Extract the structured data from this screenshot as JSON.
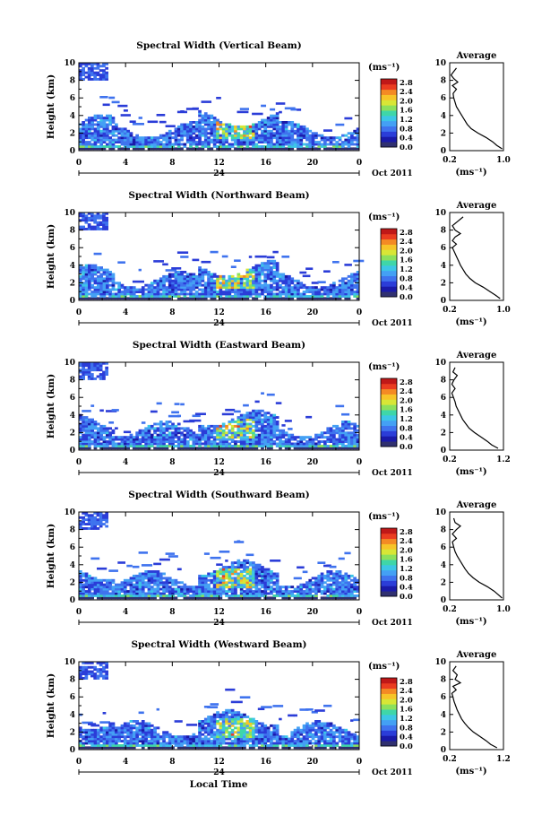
{
  "figure": {
    "xlabel": "Local Time",
    "date_label": "Oct 2011",
    "day_label": "24",
    "colorbar_unit": "(ms⁻¹)",
    "average_unit": "(ms⁻¹)",
    "average_title": "Average",
    "colors": [
      "#303070",
      "#1a1aa8",
      "#2b3dd8",
      "#3f73ee",
      "#44a0f4",
      "#3cc6e6",
      "#3fd6a8",
      "#8ce05c",
      "#d8e636",
      "#f7c428",
      "#f48a24",
      "#ea3c20",
      "#c01818"
    ]
  },
  "chart_data": [
    {
      "type": "heatmap",
      "title": "Spectral Width (Vertical Beam)",
      "ylabel": "Height (km)",
      "x_range": [
        0,
        24
      ],
      "y_range": [
        0,
        10
      ],
      "x_ticks": [
        "0",
        "4",
        "8",
        "12",
        "16",
        "20",
        "0"
      ],
      "y_ticks": [
        "0",
        "2",
        "4",
        "6",
        "8",
        "10"
      ],
      "colorbar_ticks": [
        "0.0",
        "0.4",
        "0.8",
        "1.2",
        "1.6",
        "2.0",
        "2.4",
        "2.8"
      ],
      "colorbar_range": [
        0,
        2.8
      ],
      "average": {
        "xlim": [
          0.2,
          1.0
        ],
        "x_ticks": [
          "0.2",
          "1.0"
        ],
        "y_ticks": [
          "0",
          "2",
          "4",
          "6",
          "8",
          "10"
        ],
        "profile": [
          [
            0.98,
            0.2
          ],
          [
            0.9,
            0.6
          ],
          [
            0.84,
            1.0
          ],
          [
            0.74,
            1.5
          ],
          [
            0.62,
            2.0
          ],
          [
            0.52,
            2.5
          ],
          [
            0.46,
            3.0
          ],
          [
            0.42,
            3.5
          ],
          [
            0.38,
            4.0
          ],
          [
            0.34,
            4.5
          ],
          [
            0.3,
            5.0
          ],
          [
            0.28,
            5.5
          ],
          [
            0.26,
            6.0
          ],
          [
            0.25,
            6.5
          ],
          [
            0.3,
            7.0
          ],
          [
            0.24,
            7.4
          ],
          [
            0.32,
            7.8
          ],
          [
            0.26,
            8.2
          ],
          [
            0.22,
            8.6
          ],
          [
            0.26,
            9.0
          ],
          [
            0.3,
            9.4
          ]
        ]
      }
    },
    {
      "type": "heatmap",
      "title": "Spectral Width (Northward Beam)",
      "ylabel": "Height (km)",
      "x_range": [
        0,
        24
      ],
      "y_range": [
        0,
        10
      ],
      "x_ticks": [
        "0",
        "4",
        "8",
        "12",
        "16",
        "20",
        "0"
      ],
      "y_ticks": [
        "0",
        "2",
        "4",
        "6",
        "8",
        "10"
      ],
      "colorbar_ticks": [
        "0.0",
        "0.4",
        "0.8",
        "1.2",
        "1.6",
        "2.0",
        "2.4",
        "2.8"
      ],
      "colorbar_range": [
        0,
        2.8
      ],
      "average": {
        "xlim": [
          0.2,
          1.0
        ],
        "x_ticks": [
          "0.2",
          "1.0"
        ],
        "y_ticks": [
          "0",
          "2",
          "4",
          "6",
          "8",
          "10"
        ],
        "profile": [
          [
            0.95,
            0.2
          ],
          [
            0.88,
            0.6
          ],
          [
            0.8,
            1.0
          ],
          [
            0.7,
            1.5
          ],
          [
            0.58,
            2.0
          ],
          [
            0.5,
            2.5
          ],
          [
            0.44,
            3.0
          ],
          [
            0.4,
            3.5
          ],
          [
            0.36,
            4.0
          ],
          [
            0.33,
            4.5
          ],
          [
            0.3,
            5.0
          ],
          [
            0.27,
            5.5
          ],
          [
            0.24,
            6.0
          ],
          [
            0.3,
            6.4
          ],
          [
            0.24,
            6.8
          ],
          [
            0.28,
            7.2
          ],
          [
            0.36,
            7.6
          ],
          [
            0.28,
            8.0
          ],
          [
            0.24,
            8.5
          ],
          [
            0.32,
            9.0
          ],
          [
            0.4,
            9.5
          ]
        ]
      }
    },
    {
      "type": "heatmap",
      "title": "Spectral Width (Eastward Beam)",
      "ylabel": "Height (km)",
      "x_range": [
        0,
        24
      ],
      "y_range": [
        0,
        10
      ],
      "x_ticks": [
        "0",
        "4",
        "8",
        "12",
        "16",
        "20",
        "0"
      ],
      "y_ticks": [
        "0",
        "2",
        "4",
        "6",
        "8",
        "10"
      ],
      "colorbar_ticks": [
        "0.0",
        "0.4",
        "0.8",
        "1.2",
        "1.6",
        "2.0",
        "2.4",
        "2.8"
      ],
      "colorbar_range": [
        0,
        2.8
      ],
      "average": {
        "xlim": [
          0.2,
          1.2
        ],
        "x_ticks": [
          "0.2",
          "1.2"
        ],
        "y_ticks": [
          "0",
          "2",
          "4",
          "6",
          "8",
          "10"
        ],
        "profile": [
          [
            1.1,
            0.2
          ],
          [
            0.98,
            0.6
          ],
          [
            0.9,
            1.0
          ],
          [
            0.78,
            1.5
          ],
          [
            0.66,
            2.0
          ],
          [
            0.56,
            2.5
          ],
          [
            0.5,
            3.0
          ],
          [
            0.44,
            3.5
          ],
          [
            0.4,
            4.0
          ],
          [
            0.36,
            4.5
          ],
          [
            0.32,
            5.0
          ],
          [
            0.3,
            5.5
          ],
          [
            0.27,
            6.0
          ],
          [
            0.24,
            6.5
          ],
          [
            0.3,
            7.0
          ],
          [
            0.24,
            7.5
          ],
          [
            0.28,
            8.0
          ],
          [
            0.34,
            8.5
          ],
          [
            0.26,
            8.9
          ],
          [
            0.3,
            9.4
          ]
        ]
      }
    },
    {
      "type": "heatmap",
      "title": "Spectral Width (Southward Beam)",
      "ylabel": "Height (km)",
      "x_range": [
        0,
        24
      ],
      "y_range": [
        0,
        10
      ],
      "x_ticks": [
        "0",
        "4",
        "8",
        "12",
        "16",
        "20",
        "0"
      ],
      "y_ticks": [
        "0",
        "2",
        "4",
        "6",
        "8",
        "10"
      ],
      "colorbar_ticks": [
        "0.0",
        "0.4",
        "0.8",
        "1.2",
        "1.6",
        "2.0",
        "2.4",
        "2.8"
      ],
      "colorbar_range": [
        0,
        2.8
      ],
      "average": {
        "xlim": [
          0.2,
          1.0
        ],
        "x_ticks": [
          "0.2",
          "1.0"
        ],
        "y_ticks": [
          "0",
          "2",
          "4",
          "6",
          "8",
          "10"
        ],
        "profile": [
          [
            0.98,
            0.2
          ],
          [
            0.92,
            0.6
          ],
          [
            0.86,
            1.0
          ],
          [
            0.76,
            1.5
          ],
          [
            0.64,
            2.0
          ],
          [
            0.55,
            2.5
          ],
          [
            0.48,
            3.0
          ],
          [
            0.43,
            3.5
          ],
          [
            0.39,
            4.0
          ],
          [
            0.35,
            4.5
          ],
          [
            0.31,
            5.0
          ],
          [
            0.28,
            5.5
          ],
          [
            0.26,
            6.0
          ],
          [
            0.24,
            6.6
          ],
          [
            0.3,
            7.0
          ],
          [
            0.24,
            7.5
          ],
          [
            0.3,
            8.0
          ],
          [
            0.36,
            8.4
          ],
          [
            0.28,
            8.8
          ],
          [
            0.26,
            9.3
          ]
        ]
      }
    },
    {
      "type": "heatmap",
      "title": "Spectral Width (Westward Beam)",
      "ylabel": "Height (km)",
      "x_range": [
        0,
        24
      ],
      "y_range": [
        0,
        10
      ],
      "x_ticks": [
        "0",
        "4",
        "8",
        "12",
        "16",
        "20",
        "0"
      ],
      "y_ticks": [
        "0",
        "2",
        "4",
        "6",
        "8",
        "10"
      ],
      "colorbar_ticks": [
        "0.0",
        "0.4",
        "0.8",
        "1.2",
        "1.6",
        "2.0",
        "2.4",
        "2.8"
      ],
      "colorbar_range": [
        0,
        2.8
      ],
      "average": {
        "xlim": [
          0.2,
          1.2
        ],
        "x_ticks": [
          "0.2",
          "1.2"
        ],
        "y_ticks": [
          "0",
          "2",
          "4",
          "6",
          "8",
          "10"
        ],
        "profile": [
          [
            1.08,
            0.2
          ],
          [
            0.96,
            0.6
          ],
          [
            0.88,
            1.0
          ],
          [
            0.76,
            1.5
          ],
          [
            0.64,
            2.0
          ],
          [
            0.55,
            2.5
          ],
          [
            0.48,
            3.0
          ],
          [
            0.42,
            3.5
          ],
          [
            0.38,
            4.0
          ],
          [
            0.34,
            4.5
          ],
          [
            0.31,
            5.0
          ],
          [
            0.28,
            5.5
          ],
          [
            0.26,
            6.0
          ],
          [
            0.24,
            6.4
          ],
          [
            0.32,
            6.8
          ],
          [
            0.26,
            7.2
          ],
          [
            0.4,
            7.6
          ],
          [
            0.3,
            8.0
          ],
          [
            0.34,
            8.5
          ],
          [
            0.26,
            9.0
          ],
          [
            0.32,
            9.5
          ]
        ]
      }
    }
  ]
}
